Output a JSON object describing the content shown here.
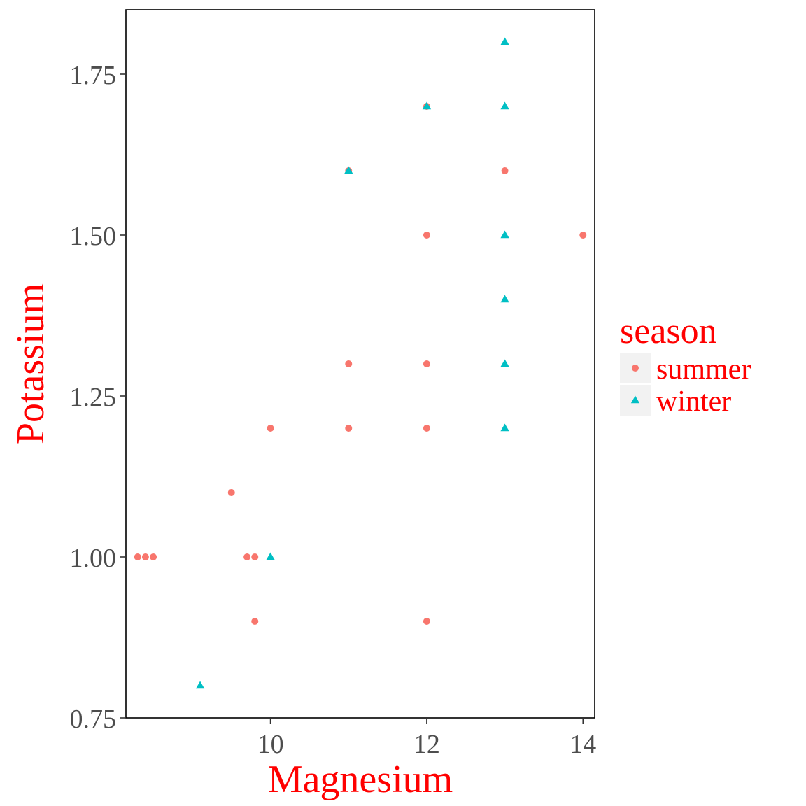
{
  "chart_data": {
    "type": "scatter",
    "xlabel": "Magnesium",
    "ylabel": "Potassium",
    "xlim": [
      8.15,
      14.15
    ],
    "ylim": [
      0.75,
      1.85
    ],
    "x_ticks": [
      10,
      12,
      14
    ],
    "x_tick_labels": [
      "10",
      "12",
      "14"
    ],
    "y_ticks": [
      0.75,
      1.0,
      1.25,
      1.5,
      1.75
    ],
    "y_tick_labels": [
      "0.75",
      "1.00",
      "1.25",
      "1.50",
      "1.75"
    ],
    "grid": false,
    "legend": {
      "title": "season",
      "position": "right",
      "entries": [
        {
          "label": "summer",
          "shape": "circle",
          "color": "#F8766D"
        },
        {
          "label": "winter",
          "shape": "triangle",
          "color": "#00BFC4"
        }
      ]
    },
    "axis_title_color": "#FF0000",
    "series": [
      {
        "name": "summer",
        "color": "#F8766D",
        "shape": "circle",
        "points": [
          [
            8.3,
            1.0
          ],
          [
            8.4,
            1.0
          ],
          [
            8.5,
            1.0
          ],
          [
            9.5,
            1.1
          ],
          [
            9.7,
            1.0
          ],
          [
            9.8,
            1.0
          ],
          [
            9.8,
            0.9
          ],
          [
            10,
            1.2
          ],
          [
            11,
            1.6
          ],
          [
            11,
            1.3
          ],
          [
            11,
            1.2
          ],
          [
            12,
            1.7
          ],
          [
            12,
            1.5
          ],
          [
            12,
            1.3
          ],
          [
            12,
            1.2
          ],
          [
            12,
            0.9
          ],
          [
            13,
            1.6
          ],
          [
            14,
            1.5
          ]
        ]
      },
      {
        "name": "winter",
        "color": "#00BFC4",
        "shape": "triangle",
        "points": [
          [
            9.1,
            0.8
          ],
          [
            10,
            1.0
          ],
          [
            11,
            1.6
          ],
          [
            12,
            1.7
          ],
          [
            13,
            1.8
          ],
          [
            13,
            1.7
          ],
          [
            13,
            1.5
          ],
          [
            13,
            1.4
          ],
          [
            13,
            1.3
          ],
          [
            13,
            1.2
          ]
        ]
      }
    ]
  }
}
